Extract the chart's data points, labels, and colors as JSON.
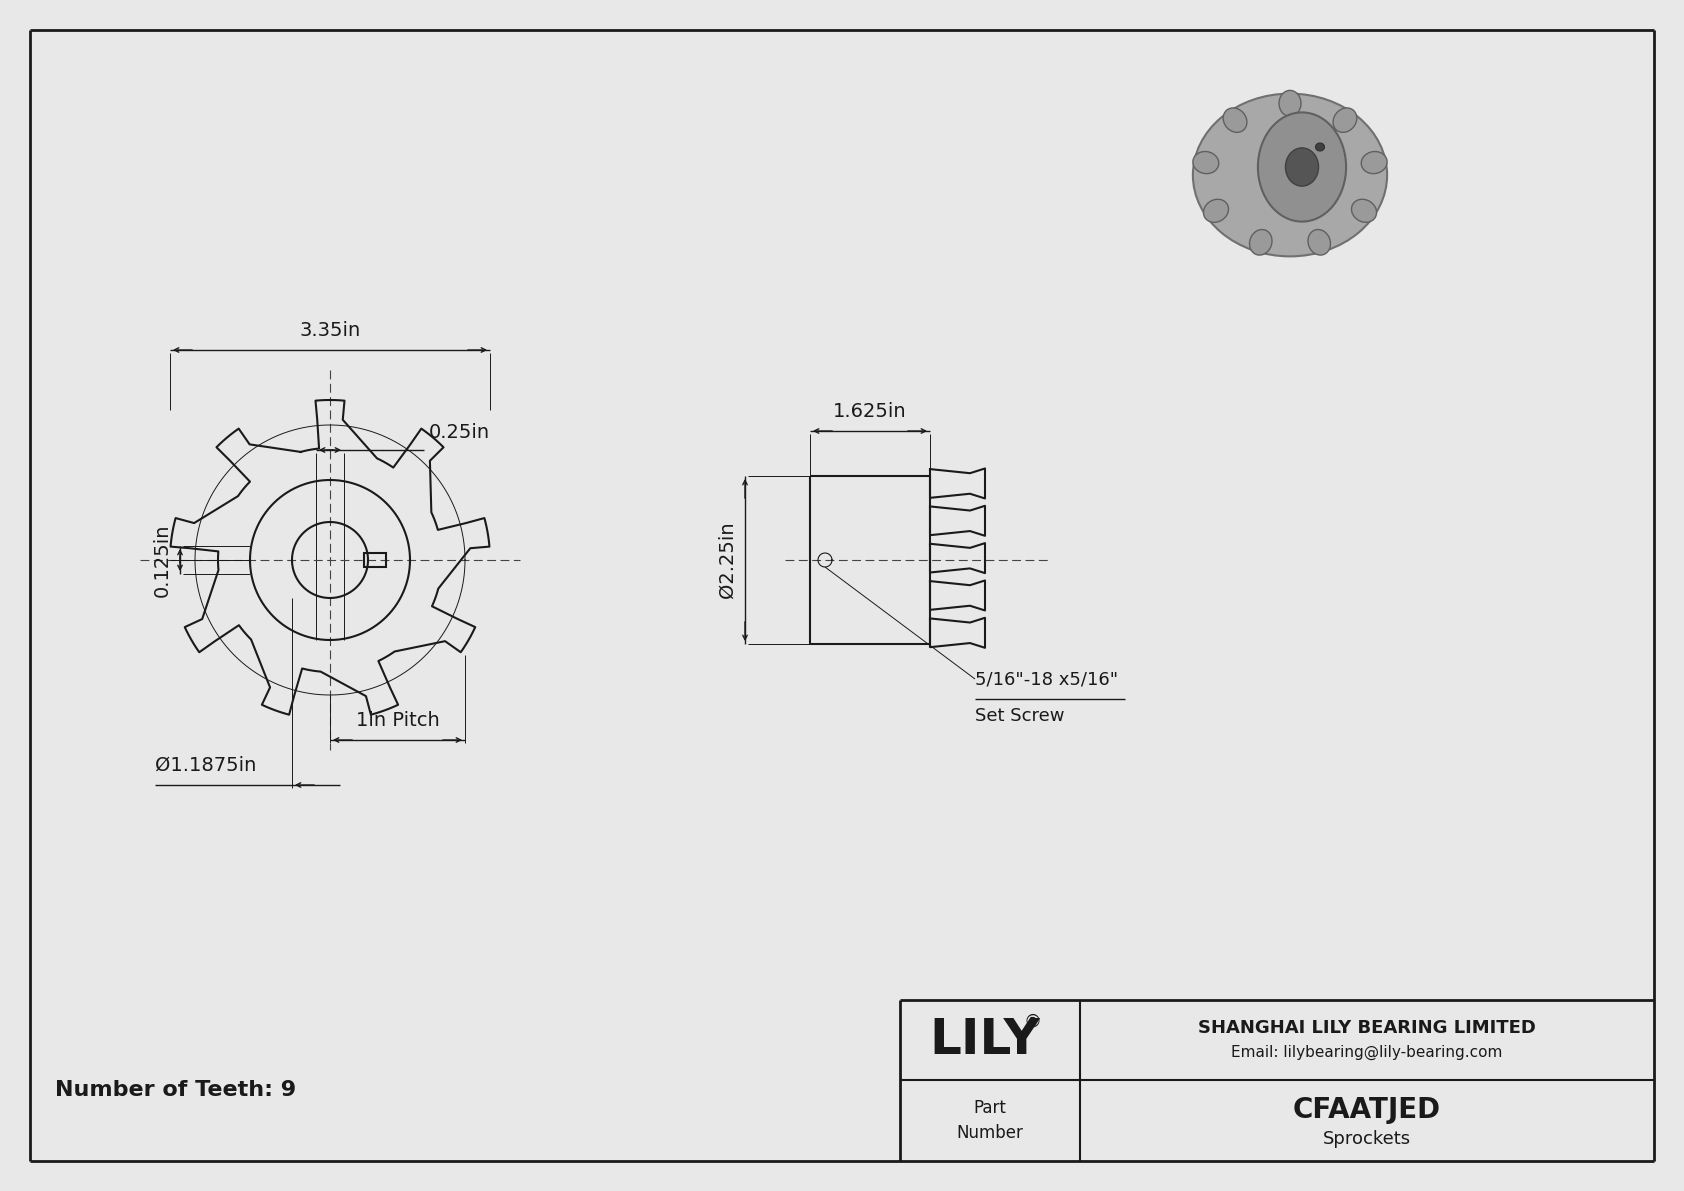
{
  "bg_color": "#e8e8e8",
  "drawing_bg": "#e8e8e8",
  "line_color": "#1a1a1a",
  "part_number": "CFAATJED",
  "category": "Sprockets",
  "company": "SHANGHAI LILY BEARING LIMITED",
  "email": "Email: lilybearing@lily-bearing.com",
  "num_teeth": 9,
  "dims": {
    "d125": "0.125in",
    "d025": "0.25in",
    "d335": "3.35in",
    "d1625": "1.625in",
    "d225": "Ø2.25in",
    "d118": "Ø1.1875in",
    "pitch_label": "1in Pitch",
    "set_screw": "5/16\"-18 x5/16\"",
    "set_screw2": "Set Screw"
  }
}
